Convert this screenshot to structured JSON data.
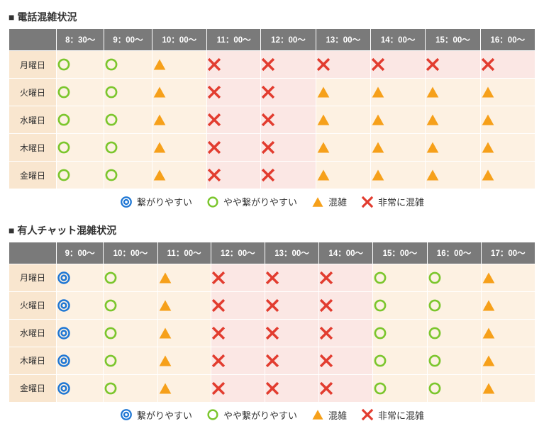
{
  "colors": {
    "header_bg": "#7a7a7a",
    "header_fg": "#ffffff",
    "rowhead_bg": "#f9e6cf",
    "cell_bg_easy": "#fdf1e2",
    "cell_bg_busy": "#fbe7e4",
    "blue": "#1f77d4",
    "green": "#7bc62d",
    "orange": "#f6a01a",
    "red": "#e23c2f"
  },
  "symbols": {
    "easy": {
      "color_key": "blue",
      "bg_key": "cell_bg_easy"
    },
    "ok": {
      "color_key": "green",
      "bg_key": "cell_bg_easy"
    },
    "busy": {
      "color_key": "orange",
      "bg_key": "cell_bg_easy"
    },
    "vbusy": {
      "color_key": "red",
      "bg_key": "cell_bg_busy"
    }
  },
  "legend": [
    {
      "sym": "easy",
      "label": "繋がりやすい"
    },
    {
      "sym": "ok",
      "label": "やや繋がりやすい"
    },
    {
      "sym": "busy",
      "label": "混雑"
    },
    {
      "sym": "vbusy",
      "label": "非常に混雑"
    }
  ],
  "tables": [
    {
      "title": "■ 電話混雑状況",
      "columns": [
        "8：30～",
        "9：00～",
        "10：00～",
        "11：00～",
        "12：00～",
        "13：00～",
        "14：00～",
        "15：00～",
        "16：00～"
      ],
      "rows": [
        {
          "label": "月曜日",
          "cells": [
            "ok",
            "ok",
            "busy",
            "vbusy",
            "vbusy",
            "vbusy",
            "vbusy",
            "vbusy",
            "vbusy"
          ]
        },
        {
          "label": "火曜日",
          "cells": [
            "ok",
            "ok",
            "busy",
            "vbusy",
            "vbusy",
            "busy",
            "busy",
            "busy",
            "busy"
          ]
        },
        {
          "label": "水曜日",
          "cells": [
            "ok",
            "ok",
            "busy",
            "vbusy",
            "vbusy",
            "busy",
            "busy",
            "busy",
            "busy"
          ]
        },
        {
          "label": "木曜日",
          "cells": [
            "ok",
            "ok",
            "busy",
            "vbusy",
            "vbusy",
            "busy",
            "busy",
            "busy",
            "busy"
          ]
        },
        {
          "label": "金曜日",
          "cells": [
            "ok",
            "ok",
            "busy",
            "vbusy",
            "vbusy",
            "busy",
            "busy",
            "busy",
            "busy"
          ]
        }
      ]
    },
    {
      "title": "■ 有人チャット混雑状況",
      "columns": [
        "9：00～",
        "10：00～",
        "11：00～",
        "12：00～",
        "13：00～",
        "14：00～",
        "15：00～",
        "16：00～",
        "17：00～"
      ],
      "rows": [
        {
          "label": "月曜日",
          "cells": [
            "easy",
            "ok",
            "busy",
            "vbusy",
            "vbusy",
            "vbusy",
            "ok",
            "ok",
            "busy"
          ]
        },
        {
          "label": "火曜日",
          "cells": [
            "easy",
            "ok",
            "busy",
            "vbusy",
            "vbusy",
            "vbusy",
            "ok",
            "ok",
            "busy"
          ]
        },
        {
          "label": "水曜日",
          "cells": [
            "easy",
            "ok",
            "busy",
            "vbusy",
            "vbusy",
            "vbusy",
            "ok",
            "ok",
            "busy"
          ]
        },
        {
          "label": "木曜日",
          "cells": [
            "easy",
            "ok",
            "busy",
            "vbusy",
            "vbusy",
            "vbusy",
            "ok",
            "ok",
            "busy"
          ]
        },
        {
          "label": "金曜日",
          "cells": [
            "easy",
            "ok",
            "busy",
            "vbusy",
            "vbusy",
            "vbusy",
            "ok",
            "ok",
            "busy"
          ]
        }
      ]
    }
  ]
}
